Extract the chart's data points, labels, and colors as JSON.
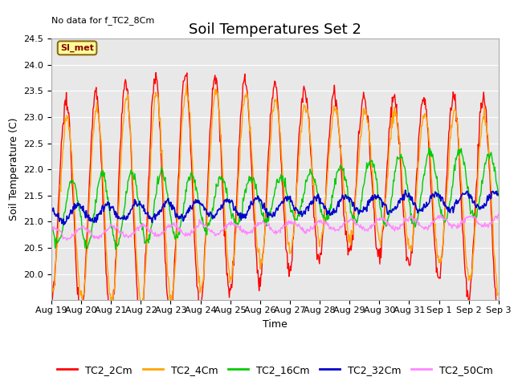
{
  "title": "Soil Temperatures Set 2",
  "ylabel": "Soil Temperature (C)",
  "xlabel": "Time",
  "annotation_top_left": "No data for f_TC2_8Cm",
  "si_met_label": "SI_met",
  "ylim": [
    19.5,
    24.5
  ],
  "yticks": [
    20.0,
    20.5,
    21.0,
    21.5,
    22.0,
    22.5,
    23.0,
    23.5,
    24.0,
    24.5
  ],
  "xtick_labels": [
    "Aug 19",
    "Aug 20",
    "Aug 21",
    "Aug 22",
    "Aug 23",
    "Aug 24",
    "Aug 25",
    "Aug 26",
    "Aug 27",
    "Aug 28",
    "Aug 29",
    "Aug 30",
    "Aug 31",
    "Sep 1",
    "Sep 2",
    "Sep 3"
  ],
  "series_colors": {
    "TC2_2Cm": "#FF0000",
    "TC2_4Cm": "#FFA500",
    "TC2_16Cm": "#00CC00",
    "TC2_32Cm": "#0000CC",
    "TC2_50Cm": "#FF88FF"
  },
  "series_linewidths": {
    "TC2_2Cm": 1.0,
    "TC2_4Cm": 1.0,
    "TC2_16Cm": 1.0,
    "TC2_32Cm": 1.2,
    "TC2_50Cm": 1.0
  },
  "plot_bg_color": "#E8E8E8",
  "fig_bg_color": "#FFFFFF",
  "grid_color": "#FFFFFF",
  "title_fontsize": 13,
  "axis_label_fontsize": 9,
  "tick_fontsize": 8,
  "legend_fontsize": 9
}
